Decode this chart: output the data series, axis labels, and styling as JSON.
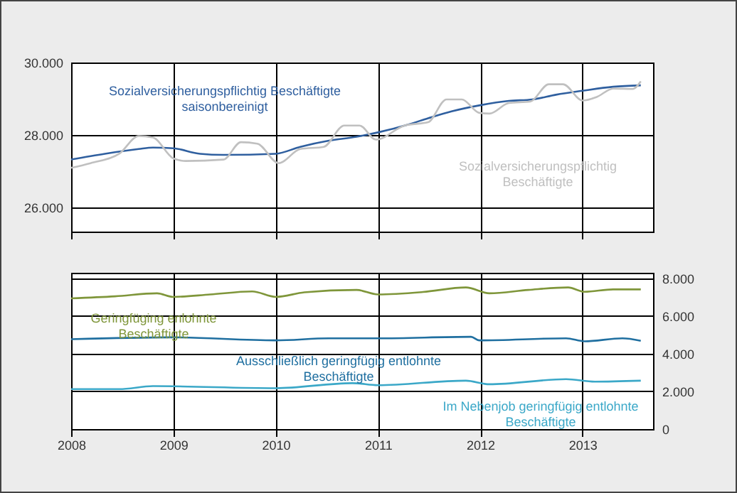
{
  "chart_data": [
    {
      "type": "line",
      "xlim": [
        2008,
        2013.69
      ],
      "xticks": [
        2008,
        2009,
        2010,
        2011,
        2012,
        2013
      ],
      "ylim": [
        25330,
        30000
      ],
      "yticks": [
        {
          "value": 26000,
          "label": "26.000"
        },
        {
          "value": 28000,
          "label": "28.000"
        },
        {
          "value": 30000,
          "label": "30.000"
        }
      ],
      "tick_labels": "y",
      "grid": true,
      "legend": false,
      "series": [
        {
          "name": "Sozialversicherungspflichtig Beschäftigte saisonbereinigt",
          "color": "#2f5f9f",
          "x": [
            2008,
            2008.33,
            2008.66,
            2008.8,
            2009,
            2009.26,
            2009.49,
            2010,
            2010.24,
            2010.52,
            2010.79,
            2011,
            2011.31,
            2011.49,
            2011.72,
            2012,
            2012.28,
            2012.51,
            2012.74,
            2013,
            2013.3,
            2013.57
          ],
          "values": [
            27320,
            27480,
            27610,
            27650,
            27630,
            27480,
            27450,
            27480,
            27670,
            27840,
            27950,
            28070,
            28300,
            28460,
            28650,
            28820,
            28940,
            28980,
            29110,
            29220,
            29330,
            29370
          ]
        },
        {
          "name": "Sozialversicherungspflichtig Beschäftigte",
          "color": "#c0c0c0",
          "x": [
            2008,
            2008.19,
            2008.47,
            2008.66,
            2008.8,
            2009,
            2009.12,
            2009.49,
            2009.66,
            2009.82,
            2010.03,
            2010.24,
            2010.47,
            2010.67,
            2010.82,
            2010.98,
            2011.26,
            2011.49,
            2011.67,
            2011.82,
            2011.99,
            2012.09,
            2012.28,
            2012.49,
            2012.67,
            2012.81,
            2013,
            2013.14,
            2013.3,
            2013.49,
            2013.57
          ],
          "values": [
            27090,
            27220,
            27480,
            27970,
            27930,
            27350,
            27280,
            27320,
            27800,
            27760,
            27220,
            27610,
            27670,
            28260,
            28260,
            27870,
            28260,
            28350,
            28980,
            28980,
            28610,
            28590,
            28880,
            28920,
            29400,
            29400,
            28950,
            29050,
            29280,
            29270,
            29480
          ]
        }
      ]
    },
    {
      "type": "line",
      "xlim": [
        2008,
        2013.69
      ],
      "xticks": [
        2008,
        2009,
        2010,
        2011,
        2012,
        2013
      ],
      "y2lim": [
        0,
        8300
      ],
      "y2ticks": [
        0,
        {
          "value": 2000,
          "label": "2.000"
        },
        {
          "value": 4000,
          "label": "4.000"
        },
        {
          "value": 6000,
          "label": "6.000"
        },
        {
          "value": 8000,
          "label": "8.000"
        }
      ],
      "grid": true,
      "legend": false,
      "series": [
        {
          "name": "Geringfüging enlohnte Beschäftigte",
          "color": "#7f963a",
          "axis": "y2",
          "x": [
            2008,
            2008.43,
            2008.84,
            2009,
            2009.36,
            2009.77,
            2010,
            2010.28,
            2010.79,
            2011,
            2011.44,
            2011.86,
            2012.09,
            2012.47,
            2012.86,
            2013.02,
            2013.3,
            2013.57
          ],
          "values": [
            6940,
            7050,
            7210,
            7020,
            7150,
            7310,
            7020,
            7260,
            7390,
            7150,
            7280,
            7520,
            7210,
            7390,
            7520,
            7290,
            7420,
            7420
          ]
        },
        {
          "name": "Ausschließlich geringfügig entlohnte Beschäftigte",
          "color": "#1f6fa0",
          "axis": "y2",
          "x": [
            2008,
            2008.98,
            2010,
            2010.52,
            2011,
            2011.91,
            2011.99,
            2012.84,
            2013.02,
            2013.39,
            2013.57
          ],
          "values": [
            4770,
            4870,
            4710,
            4820,
            4820,
            4900,
            4710,
            4820,
            4660,
            4820,
            4690
          ]
        },
        {
          "name": "Im Nebenjob geringfügig entlohnte Beschäftigte",
          "color": "#3ba8c8",
          "axis": "y2",
          "x": [
            2008,
            2008.47,
            2008.8,
            2010,
            2010.75,
            2011,
            2011.86,
            2012.09,
            2012.84,
            2013.12,
            2013.57
          ],
          "values": [
            2120,
            2120,
            2280,
            2170,
            2440,
            2330,
            2570,
            2380,
            2650,
            2520,
            2570
          ]
        }
      ]
    }
  ]
}
